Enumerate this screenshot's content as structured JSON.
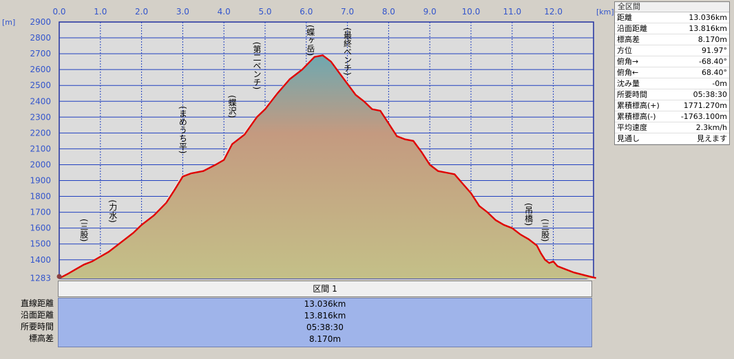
{
  "chart_data": {
    "type": "area",
    "x_unit": "[km]",
    "y_unit": "[m]",
    "xlim": [
      0,
      13.036
    ],
    "ylim": [
      1283,
      2900
    ],
    "x_ticks": [
      "0.0",
      "1.0",
      "2.0",
      "3.0",
      "4.0",
      "5.0",
      "6.0",
      "7.0",
      "8.0",
      "9.0",
      "10.0",
      "11.0",
      "12.0"
    ],
    "y_ticks": [
      "2900",
      "2800",
      "2700",
      "2600",
      "2500",
      "2400",
      "2300",
      "2200",
      "2100",
      "2000",
      "1900",
      "1800",
      "1700",
      "1600",
      "1500",
      "1400",
      "1283"
    ],
    "grid": true,
    "series": [
      {
        "color": "#e00000",
        "x": [
          0,
          0.2,
          0.4,
          0.6,
          0.8,
          1.0,
          1.2,
          1.5,
          1.8,
          2.0,
          2.3,
          2.6,
          2.8,
          3.0,
          3.2,
          3.5,
          3.8,
          4.0,
          4.2,
          4.5,
          4.8,
          5.0,
          5.3,
          5.6,
          5.9,
          6.2,
          6.4,
          6.6,
          6.8,
          7.0,
          7.2,
          7.4,
          7.6,
          7.8,
          8.0,
          8.2,
          8.4,
          8.6,
          8.8,
          9.0,
          9.2,
          9.4,
          9.6,
          9.8,
          10.0,
          10.2,
          10.4,
          10.6,
          10.8,
          11.0,
          11.2,
          11.4,
          11.6,
          11.7,
          11.8,
          11.9,
          12.0,
          12.1,
          12.3,
          12.5,
          12.8,
          13.036
        ],
        "y": [
          1283,
          1310,
          1340,
          1370,
          1390,
          1420,
          1450,
          1510,
          1570,
          1620,
          1680,
          1760,
          1840,
          1925,
          1945,
          1960,
          2000,
          2030,
          2130,
          2190,
          2300,
          2350,
          2450,
          2540,
          2600,
          2680,
          2690,
          2650,
          2580,
          2510,
          2440,
          2400,
          2350,
          2340,
          2260,
          2180,
          2160,
          2150,
          2080,
          2000,
          1960,
          1950,
          1940,
          1880,
          1820,
          1740,
          1700,
          1650,
          1620,
          1600,
          1560,
          1530,
          1490,
          1440,
          1400,
          1380,
          1390,
          1360,
          1340,
          1320,
          1300,
          1285
        ]
      }
    ],
    "annotations": [
      {
        "text": "(三股)",
        "x": 0.8
      },
      {
        "text": "(力水)",
        "x": 1.5
      },
      {
        "text": "(まめうち平)",
        "x": 3.2
      },
      {
        "text": "(蝶沢)",
        "x": 4.4
      },
      {
        "text": "(第二ベンチ)",
        "x": 5.0
      },
      {
        "text": "(蝶ヶ岳)",
        "x": 6.3
      },
      {
        "text": "(最終ベンチ)",
        "x": 7.2
      },
      {
        "text": "(吊橋)",
        "x": 11.6
      },
      {
        "text": "(三股)",
        "x": 12.0
      }
    ]
  },
  "info_panel": {
    "title": "全区間",
    "rows": [
      {
        "label": "距離",
        "value": "13.036km"
      },
      {
        "label": "沿面距離",
        "value": "13.816km"
      },
      {
        "label": "標高差",
        "value": "8.170m"
      },
      {
        "label": "方位",
        "value": "91.97°"
      },
      {
        "label": "俯角→",
        "value": "-68.40°"
      },
      {
        "label": "俯角←",
        "value": "68.40°"
      },
      {
        "label": "沈み量",
        "value": "-0m"
      },
      {
        "label": "所要時間",
        "value": "05:38:30"
      },
      {
        "label": "累積標高(+)",
        "value": "1771.270m"
      },
      {
        "label": "累積標高(-)",
        "value": "-1763.100m"
      },
      {
        "label": "平均速度",
        "value": "2.3km/h"
      },
      {
        "label": "見通し",
        "value": "見えます"
      }
    ]
  },
  "section": {
    "header": "区間 1",
    "labels": [
      "直線距離",
      "沿面距離",
      "所要時間",
      "標高差"
    ],
    "values": [
      "13.036km",
      "13.816km",
      "05:38:30",
      "8.170m"
    ]
  }
}
